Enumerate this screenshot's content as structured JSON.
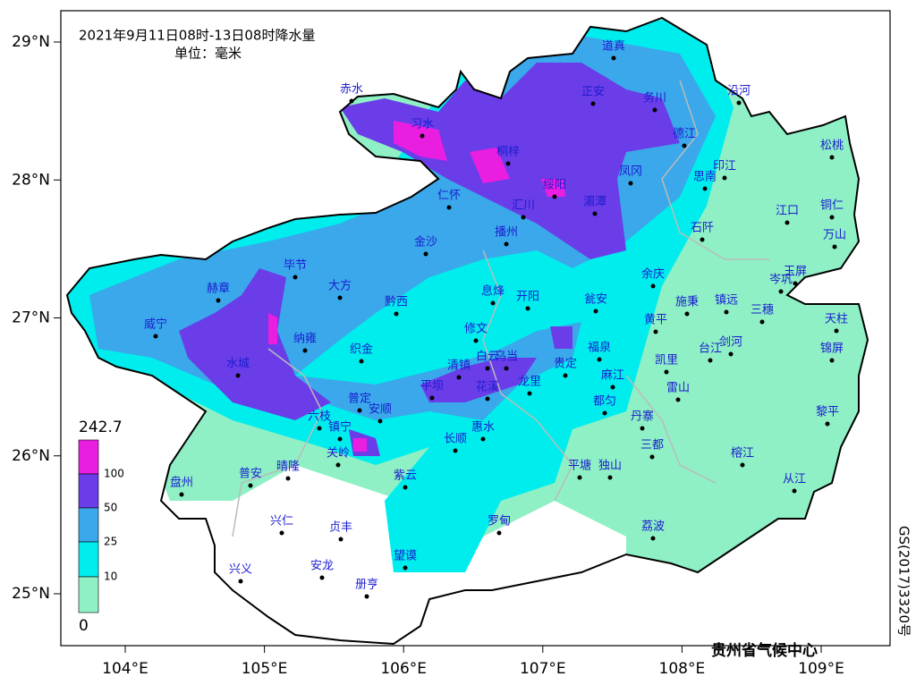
{
  "title": "2021年9月11日08时-13日08时降水量",
  "unit": "单位：毫米",
  "x_ticks": [
    {
      "value": 104,
      "label": "104°E"
    },
    {
      "value": 105,
      "label": "105°E"
    },
    {
      "value": 106,
      "label": "106°E"
    },
    {
      "value": 107,
      "label": "107°E"
    },
    {
      "value": 108,
      "label": "108°E"
    },
    {
      "value": 109,
      "label": "109°E"
    }
  ],
  "y_ticks": [
    {
      "value": 29,
      "label": "29°N"
    },
    {
      "value": 28,
      "label": "28°N"
    },
    {
      "value": 27,
      "label": "27°N"
    },
    {
      "value": 26,
      "label": "26°N"
    },
    {
      "value": 25,
      "label": "25°N"
    }
  ],
  "legend": {
    "levels": [
      242.7,
      100,
      50,
      25,
      10,
      0
    ]
  },
  "cities": [
    "道真",
    "正安",
    "务川",
    "沿河",
    "赤水",
    "习水",
    "桐梓",
    "德江",
    "松桃",
    "凤冈",
    "印江",
    "思南",
    "绥阳",
    "湄潭",
    "仁怀",
    "汇川",
    "播州",
    "江口",
    "铜仁",
    "石阡",
    "万山",
    "金沙",
    "毕节",
    "赫章",
    "大方",
    "余庆",
    "岑巩",
    "玉屏",
    "黔西",
    "息烽",
    "开阳",
    "瓮安",
    "施秉",
    "镇远",
    "三穗",
    "威宁",
    "黄平",
    "天柱",
    "纳雍",
    "修文",
    "福泉",
    "台江",
    "剑河",
    "锦屏",
    "织金",
    "白云",
    "乌当",
    "水城",
    "清镇",
    "贵定",
    "凯里",
    "平坝",
    "花溪",
    "龙里",
    "麻江",
    "雷山",
    "都匀",
    "普定",
    "安顺",
    "六枝",
    "黎平",
    "丹寨",
    "惠水",
    "镇宁",
    "长顺",
    "三都",
    "关岭",
    "榕江",
    "盘州",
    "普安",
    "晴隆",
    "紫云",
    "平塘",
    "独山",
    "从江",
    "兴仁",
    "贞丰",
    "罗甸",
    "荔波",
    "望谟",
    "兴义",
    "安龙",
    "册亨"
  ],
  "credit": "贵州省气候中心",
  "map_number": "GS(2017)3320号"
}
